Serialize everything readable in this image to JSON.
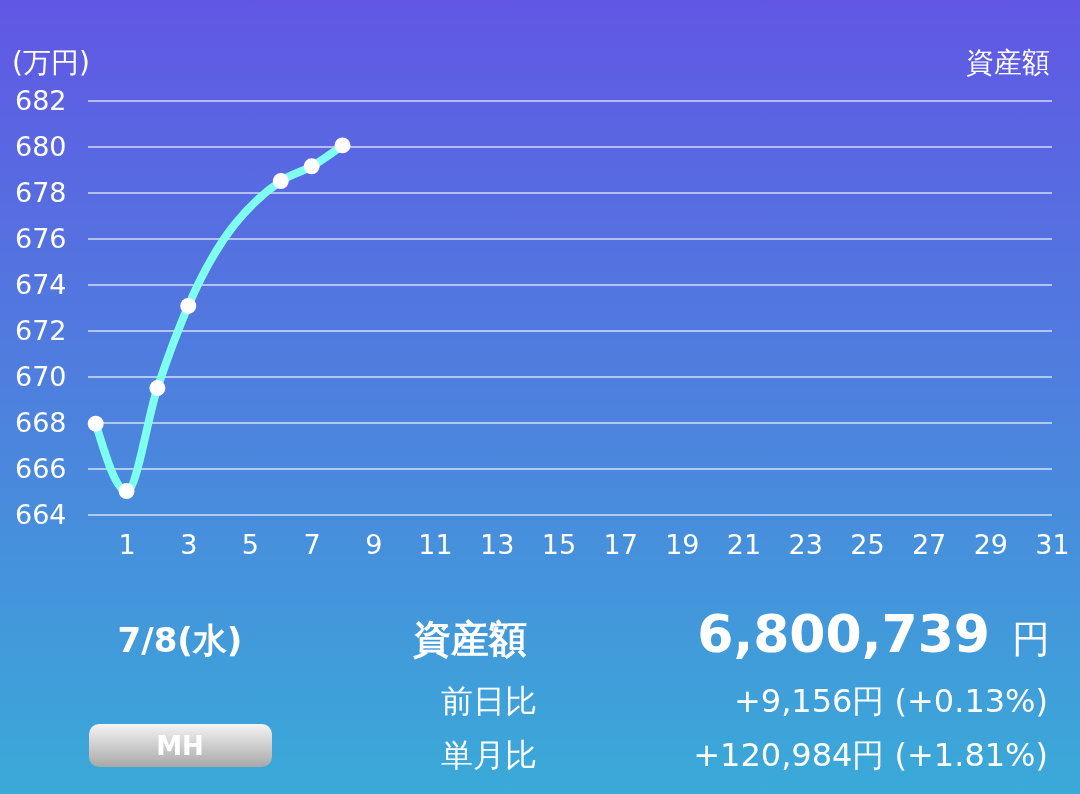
{
  "chart_data": {
    "type": "line",
    "title": "資産額",
    "ylabel": "(万円)",
    "x": [
      0,
      1,
      2,
      3,
      6,
      7,
      8
    ],
    "series": [
      {
        "color": "#7ffff0",
        "values": [
          667.97,
          665.04,
          669.52,
          673.09,
          678.52,
          679.16,
          680.07
        ]
      }
    ],
    "xlim": [
      -0.25,
      31
    ],
    "xticks": [
      1,
      3,
      5,
      7,
      9,
      11,
      13,
      15,
      17,
      19,
      21,
      23,
      25,
      27,
      29,
      31
    ],
    "ylim": [
      664,
      682
    ],
    "yticks": [
      664,
      666,
      668,
      670,
      672,
      674,
      676,
      678,
      680,
      682
    ],
    "grid": "y",
    "marker": "circle",
    "line_style": "solid",
    "annotations": [
      "7/8(水)",
      "資産額",
      "6,800,739",
      "円",
      "前日比",
      "+9,156円 (+0.13%)",
      "単月比",
      "+120,984円 (+1.81%)",
      "MH"
    ]
  }
}
